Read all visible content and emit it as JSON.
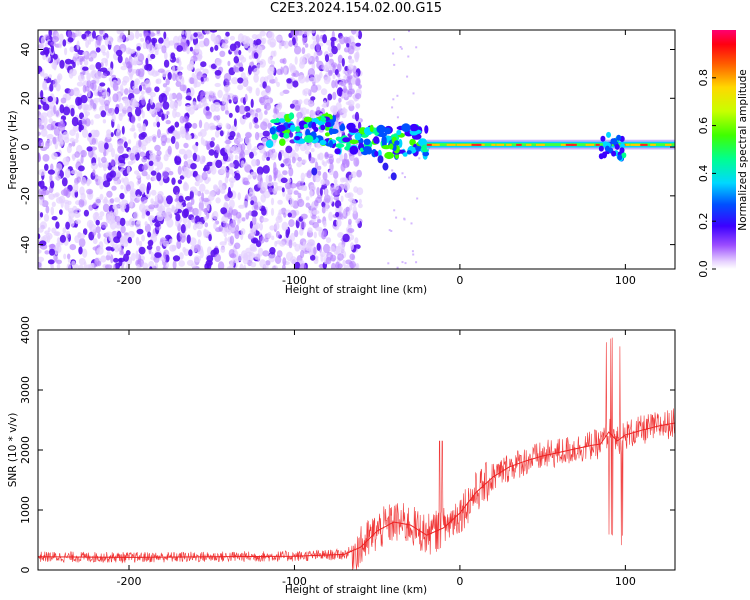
{
  "title": "C2E3.2024.154.02.00.G15",
  "chart_data": [
    {
      "type": "heatmap",
      "xlabel": "Height of straight line (km)",
      "ylabel": "Frequency (Hz)",
      "xlim": [
        -255,
        130
      ],
      "ylim": [
        -50,
        48
      ],
      "xticks": [
        -200,
        -100,
        0,
        100
      ],
      "yticks": [
        -40,
        -20,
        0,
        20,
        40
      ],
      "grid": false,
      "colorbar": {
        "label": "Normalized spectral amplitude",
        "range": [
          0,
          1
        ],
        "ticks": [
          "0.0",
          "0.2",
          "0.4",
          "0.6",
          "0.8"
        ],
        "colormap": "rainbow (white-violet-blue-cyan-green-yellow-orange-red-magenta)"
      },
      "features": [
        {
          "region": "noise",
          "x_range": [
            -255,
            -60
          ],
          "y_range": [
            -50,
            48
          ],
          "amplitude": 0.05
        },
        {
          "region": "signal-onset",
          "x_range": [
            -115,
            -20
          ],
          "frequency_hz": [
            5,
            10
          ],
          "amplitude": 0.4
        },
        {
          "region": "signal-track",
          "x_range": [
            -20,
            130
          ],
          "frequency_hz": 1,
          "amplitude": 0.85
        }
      ]
    },
    {
      "type": "line",
      "xlabel": "Height of straight line (km)",
      "ylabel": "SNR (10 * v/v)",
      "xlim": [
        -255,
        130
      ],
      "ylim": [
        0,
        4000
      ],
      "xticks": [
        -200,
        -100,
        0,
        100
      ],
      "yticks": [
        0,
        1000,
        2000,
        3000,
        4000
      ],
      "series": [
        {
          "color": "#ee2222",
          "x": [
            -255,
            -200,
            -150,
            -100,
            -70,
            -60,
            -50,
            -40,
            -30,
            -20,
            -10,
            0,
            10,
            20,
            30,
            40,
            50,
            60,
            70,
            80,
            85,
            90,
            95,
            100,
            110,
            120,
            130
          ],
          "y": [
            220,
            210,
            220,
            230,
            260,
            380,
            650,
            800,
            750,
            580,
            700,
            950,
            1300,
            1550,
            1720,
            1820,
            1900,
            1960,
            2020,
            2080,
            2100,
            2300,
            2150,
            2250,
            2330,
            2400,
            2450
          ]
        }
      ]
    }
  ]
}
